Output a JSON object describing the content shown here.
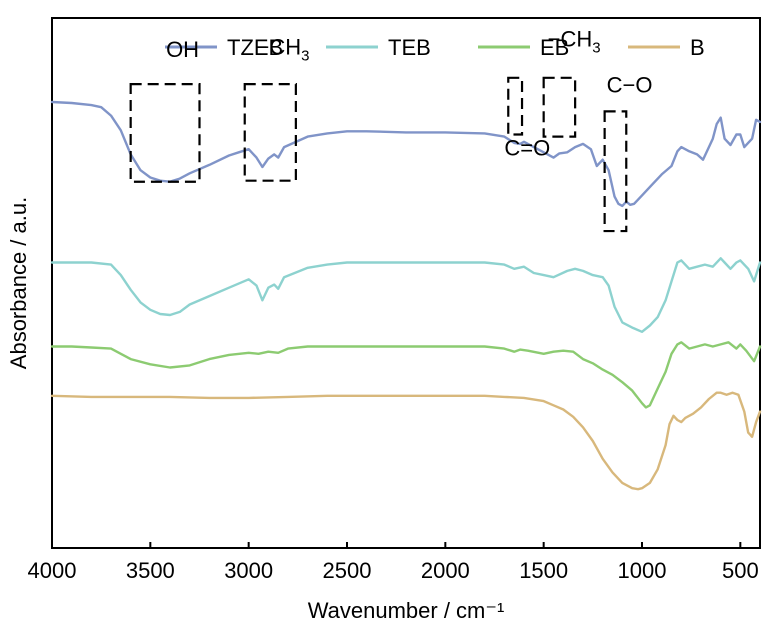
{
  "chart_data": {
    "type": "line",
    "xlabel": "Wavenumber / cm⁻¹",
    "ylabel": "Absorbance / a.u.",
    "xlim": [
      4000,
      400
    ],
    "x_reversed": true,
    "xticks": [
      4000,
      3500,
      3000,
      2500,
      2000,
      1500,
      1000,
      500
    ],
    "y_ticks_shown": false,
    "legend": {
      "placement": "top",
      "entries": [
        "TZEB",
        "TEB",
        "EB",
        "B"
      ]
    },
    "series": [
      {
        "name": "TZEB",
        "color": "#8094c8",
        "offset": 3.0,
        "points": [
          [
            4000,
            0.95
          ],
          [
            3900,
            0.94
          ],
          [
            3800,
            0.92
          ],
          [
            3750,
            0.9
          ],
          [
            3700,
            0.82
          ],
          [
            3650,
            0.68
          ],
          [
            3600,
            0.45
          ],
          [
            3550,
            0.3
          ],
          [
            3500,
            0.23
          ],
          [
            3450,
            0.2
          ],
          [
            3400,
            0.19
          ],
          [
            3350,
            0.22
          ],
          [
            3300,
            0.27
          ],
          [
            3200,
            0.35
          ],
          [
            3100,
            0.44
          ],
          [
            3050,
            0.47
          ],
          [
            3000,
            0.5
          ],
          [
            2960,
            0.42
          ],
          [
            2930,
            0.33
          ],
          [
            2900,
            0.41
          ],
          [
            2870,
            0.45
          ],
          [
            2850,
            0.42
          ],
          [
            2820,
            0.52
          ],
          [
            2700,
            0.62
          ],
          [
            2600,
            0.65
          ],
          [
            2500,
            0.67
          ],
          [
            2400,
            0.67
          ],
          [
            2200,
            0.66
          ],
          [
            2000,
            0.66
          ],
          [
            1800,
            0.65
          ],
          [
            1700,
            0.62
          ],
          [
            1650,
            0.56
          ],
          [
            1620,
            0.55
          ],
          [
            1600,
            0.57
          ],
          [
            1550,
            0.52
          ],
          [
            1500,
            0.47
          ],
          [
            1450,
            0.42
          ],
          [
            1420,
            0.46
          ],
          [
            1380,
            0.47
          ],
          [
            1340,
            0.52
          ],
          [
            1300,
            0.55
          ],
          [
            1260,
            0.5
          ],
          [
            1230,
            0.34
          ],
          [
            1200,
            0.4
          ],
          [
            1170,
            0.3
          ],
          [
            1140,
            0.05
          ],
          [
            1120,
            -0.02
          ],
          [
            1100,
            -0.04
          ],
          [
            1080,
            0.0
          ],
          [
            1060,
            -0.03
          ],
          [
            1040,
            -0.02
          ],
          [
            1000,
            0.06
          ],
          [
            950,
            0.16
          ],
          [
            900,
            0.26
          ],
          [
            850,
            0.34
          ],
          [
            820,
            0.48
          ],
          [
            800,
            0.52
          ],
          [
            760,
            0.48
          ],
          [
            720,
            0.45
          ],
          [
            690,
            0.4
          ],
          [
            660,
            0.52
          ],
          [
            640,
            0.6
          ],
          [
            620,
            0.74
          ],
          [
            600,
            0.8
          ],
          [
            580,
            0.6
          ],
          [
            550,
            0.54
          ],
          [
            520,
            0.64
          ],
          [
            500,
            0.64
          ],
          [
            480,
            0.52
          ],
          [
            440,
            0.6
          ],
          [
            420,
            0.78
          ],
          [
            400,
            0.76
          ]
        ]
      },
      {
        "name": "TEB",
        "color": "#8dd2cf",
        "offset": 1.8,
        "points": [
          [
            4000,
            0.62
          ],
          [
            3900,
            0.62
          ],
          [
            3800,
            0.62
          ],
          [
            3700,
            0.6
          ],
          [
            3650,
            0.5
          ],
          [
            3600,
            0.36
          ],
          [
            3550,
            0.24
          ],
          [
            3500,
            0.17
          ],
          [
            3450,
            0.13
          ],
          [
            3400,
            0.12
          ],
          [
            3350,
            0.15
          ],
          [
            3300,
            0.22
          ],
          [
            3200,
            0.3
          ],
          [
            3100,
            0.38
          ],
          [
            3000,
            0.46
          ],
          [
            2960,
            0.4
          ],
          [
            2930,
            0.26
          ],
          [
            2900,
            0.38
          ],
          [
            2870,
            0.41
          ],
          [
            2850,
            0.37
          ],
          [
            2820,
            0.48
          ],
          [
            2700,
            0.57
          ],
          [
            2600,
            0.6
          ],
          [
            2500,
            0.62
          ],
          [
            2200,
            0.62
          ],
          [
            2000,
            0.62
          ],
          [
            1800,
            0.62
          ],
          [
            1700,
            0.6
          ],
          [
            1650,
            0.56
          ],
          [
            1600,
            0.58
          ],
          [
            1550,
            0.52
          ],
          [
            1500,
            0.5
          ],
          [
            1450,
            0.48
          ],
          [
            1380,
            0.54
          ],
          [
            1340,
            0.56
          ],
          [
            1300,
            0.54
          ],
          [
            1250,
            0.5
          ],
          [
            1200,
            0.48
          ],
          [
            1170,
            0.4
          ],
          [
            1140,
            0.2
          ],
          [
            1100,
            0.05
          ],
          [
            1050,
            0.0
          ],
          [
            1000,
            -0.04
          ],
          [
            960,
            0.02
          ],
          [
            920,
            0.1
          ],
          [
            880,
            0.26
          ],
          [
            850,
            0.44
          ],
          [
            820,
            0.62
          ],
          [
            800,
            0.64
          ],
          [
            760,
            0.56
          ],
          [
            720,
            0.58
          ],
          [
            680,
            0.6
          ],
          [
            640,
            0.58
          ],
          [
            600,
            0.66
          ],
          [
            580,
            0.62
          ],
          [
            550,
            0.56
          ],
          [
            520,
            0.62
          ],
          [
            500,
            0.64
          ],
          [
            460,
            0.56
          ],
          [
            430,
            0.44
          ],
          [
            400,
            0.62
          ]
        ]
      },
      {
        "name": "EB",
        "color": "#8ccb71",
        "offset": 1.0,
        "points": [
          [
            4000,
            0.62
          ],
          [
            3900,
            0.62
          ],
          [
            3800,
            0.61
          ],
          [
            3700,
            0.6
          ],
          [
            3650,
            0.55
          ],
          [
            3600,
            0.5
          ],
          [
            3500,
            0.45
          ],
          [
            3400,
            0.42
          ],
          [
            3300,
            0.44
          ],
          [
            3200,
            0.5
          ],
          [
            3100,
            0.54
          ],
          [
            3000,
            0.56
          ],
          [
            2950,
            0.55
          ],
          [
            2900,
            0.57
          ],
          [
            2850,
            0.56
          ],
          [
            2800,
            0.6
          ],
          [
            2700,
            0.62
          ],
          [
            2500,
            0.62
          ],
          [
            2200,
            0.62
          ],
          [
            2000,
            0.62
          ],
          [
            1800,
            0.62
          ],
          [
            1700,
            0.6
          ],
          [
            1650,
            0.57
          ],
          [
            1620,
            0.59
          ],
          [
            1580,
            0.58
          ],
          [
            1500,
            0.55
          ],
          [
            1450,
            0.57
          ],
          [
            1400,
            0.58
          ],
          [
            1350,
            0.57
          ],
          [
            1300,
            0.5
          ],
          [
            1250,
            0.46
          ],
          [
            1200,
            0.4
          ],
          [
            1150,
            0.35
          ],
          [
            1100,
            0.28
          ],
          [
            1050,
            0.2
          ],
          [
            1000,
            0.08
          ],
          [
            980,
            0.04
          ],
          [
            960,
            0.06
          ],
          [
            920,
            0.22
          ],
          [
            880,
            0.38
          ],
          [
            850,
            0.55
          ],
          [
            820,
            0.64
          ],
          [
            800,
            0.66
          ],
          [
            760,
            0.6
          ],
          [
            720,
            0.62
          ],
          [
            680,
            0.64
          ],
          [
            640,
            0.62
          ],
          [
            600,
            0.64
          ],
          [
            560,
            0.66
          ],
          [
            520,
            0.6
          ],
          [
            500,
            0.64
          ],
          [
            470,
            0.58
          ],
          [
            430,
            0.48
          ],
          [
            400,
            0.62
          ]
        ]
      },
      {
        "name": "B",
        "color": "#d8b87c",
        "offset": 0.0,
        "points": [
          [
            4000,
            1.15
          ],
          [
            3800,
            1.14
          ],
          [
            3600,
            1.14
          ],
          [
            3400,
            1.14
          ],
          [
            3200,
            1.13
          ],
          [
            3000,
            1.13
          ],
          [
            2800,
            1.14
          ],
          [
            2600,
            1.15
          ],
          [
            2400,
            1.15
          ],
          [
            2200,
            1.15
          ],
          [
            2000,
            1.15
          ],
          [
            1800,
            1.15
          ],
          [
            1700,
            1.14
          ],
          [
            1600,
            1.13
          ],
          [
            1500,
            1.1
          ],
          [
            1450,
            1.06
          ],
          [
            1400,
            1.02
          ],
          [
            1350,
            0.95
          ],
          [
            1300,
            0.85
          ],
          [
            1250,
            0.72
          ],
          [
            1200,
            0.55
          ],
          [
            1150,
            0.42
          ],
          [
            1100,
            0.32
          ],
          [
            1050,
            0.27
          ],
          [
            1020,
            0.26
          ],
          [
            1000,
            0.27
          ],
          [
            960,
            0.32
          ],
          [
            920,
            0.45
          ],
          [
            880,
            0.68
          ],
          [
            860,
            0.88
          ],
          [
            840,
            0.96
          ],
          [
            820,
            0.92
          ],
          [
            800,
            0.9
          ],
          [
            780,
            0.94
          ],
          [
            740,
            0.98
          ],
          [
            700,
            1.04
          ],
          [
            660,
            1.12
          ],
          [
            620,
            1.18
          ],
          [
            600,
            1.18
          ],
          [
            570,
            1.16
          ],
          [
            540,
            1.18
          ],
          [
            510,
            1.16
          ],
          [
            480,
            1.0
          ],
          [
            460,
            0.8
          ],
          [
            440,
            0.76
          ],
          [
            420,
            0.9
          ],
          [
            400,
            1.0
          ]
        ]
      }
    ],
    "annotations": [
      {
        "label_parts": [
          {
            "text": "OH"
          }
        ],
        "box_x": [
          3600,
          3250
        ],
        "box_y": [
          3.19,
          4.12
        ],
        "label_x": 3420,
        "label_y": 4.38
      },
      {
        "label_parts": [
          {
            "text": "−CH"
          },
          {
            "text": "3",
            "sub": true
          }
        ],
        "box_x": [
          3020,
          2760
        ],
        "box_y": [
          3.2,
          4.12
        ],
        "label_x": 2960,
        "label_y": 4.4
      },
      {
        "label_parts": [
          {
            "text": "C=O"
          }
        ],
        "box_x": [
          1680,
          1610
        ],
        "box_y": [
          3.64,
          4.18
        ],
        "label_x": 1700,
        "label_y": 3.44
      },
      {
        "label_parts": [
          {
            "text": "−CH"
          },
          {
            "text": "3",
            "sub": true
          }
        ],
        "box_x": [
          1500,
          1340
        ],
        "box_y": [
          3.62,
          4.18
        ],
        "label_x": 1480,
        "label_y": 4.48
      },
      {
        "label_parts": [
          {
            "text": "C−O"
          }
        ],
        "box_x": [
          1190,
          1080
        ],
        "box_y": [
          2.72,
          3.86
        ],
        "label_x": 1180,
        "label_y": 4.04
      }
    ]
  }
}
